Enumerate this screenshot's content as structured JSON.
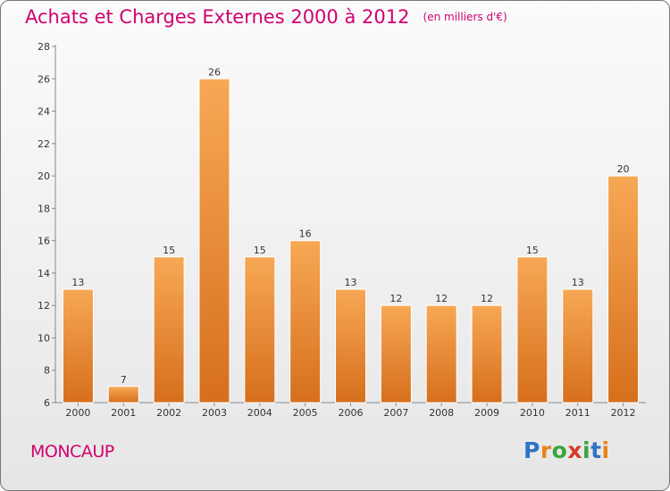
{
  "header": {
    "title": "Achats et Charges Externes 2000 à 2012",
    "subtitle": "(en milliers d'€)"
  },
  "footer": {
    "commune": "MONCAUP",
    "logo": "Proxiti"
  },
  "colors": {
    "accent": "#d0006f",
    "bar_light": "#f7a855",
    "bar_dark": "#d66f1c"
  },
  "chart_data": {
    "type": "bar",
    "title": "Achats et Charges Externes 2000 à 2012",
    "subtitle": "(en milliers d'€)",
    "categories": [
      "2000",
      "2001",
      "2002",
      "2003",
      "2004",
      "2005",
      "2006",
      "2007",
      "2008",
      "2009",
      "2010",
      "2011",
      "2012"
    ],
    "values": [
      13,
      7,
      15,
      26,
      15,
      16,
      13,
      12,
      12,
      12,
      15,
      13,
      20
    ],
    "ylim": [
      6,
      28
    ],
    "yticks": [
      6,
      8,
      10,
      12,
      14,
      16,
      18,
      20,
      22,
      24,
      26,
      28
    ],
    "grid": false,
    "legend": "none"
  }
}
